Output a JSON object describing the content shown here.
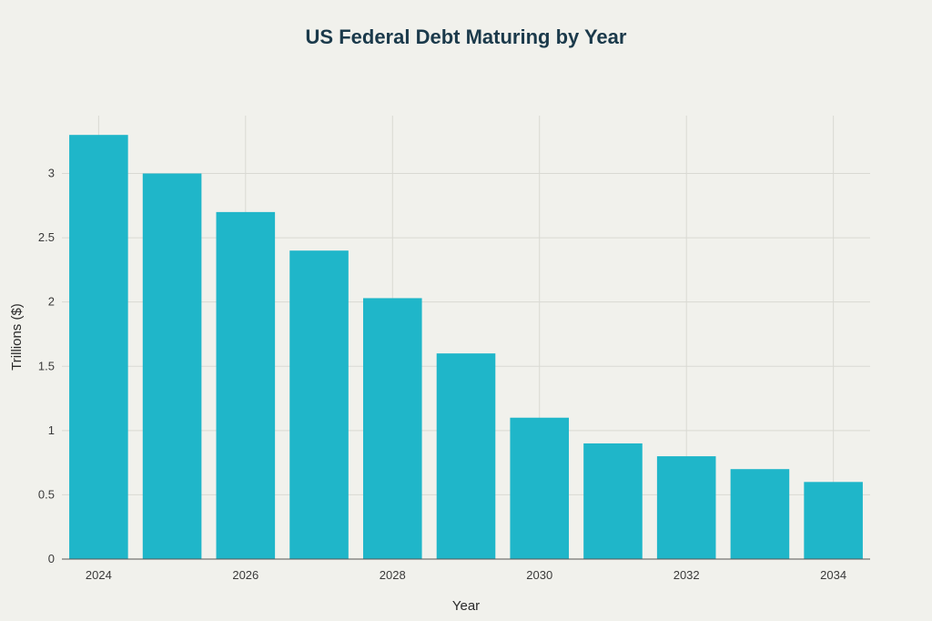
{
  "chart_data": {
    "type": "bar",
    "title": "US Federal Debt Maturing by Year",
    "xlabel": "Year",
    "ylabel": "Trillions ($)",
    "categories": [
      "2024",
      "2025",
      "2026",
      "2027",
      "2028",
      "2029",
      "2030",
      "2031",
      "2032",
      "2033",
      "2034"
    ],
    "values": [
      3.3,
      3.0,
      2.7,
      2.4,
      2.03,
      1.6,
      1.1,
      0.9,
      0.8,
      0.7,
      0.6
    ],
    "x_tick_labels": [
      "2024",
      "2026",
      "2028",
      "2030",
      "2032",
      "2034"
    ],
    "y_ticks": [
      0,
      0.5,
      1,
      1.5,
      2,
      2.5,
      3
    ],
    "y_tick_labels": [
      "0",
      "0.5",
      "1",
      "1.5",
      "2",
      "2.5",
      "3"
    ],
    "ylim": [
      0,
      3.45
    ],
    "grid": true,
    "bar_color": "#1fb6c9"
  }
}
